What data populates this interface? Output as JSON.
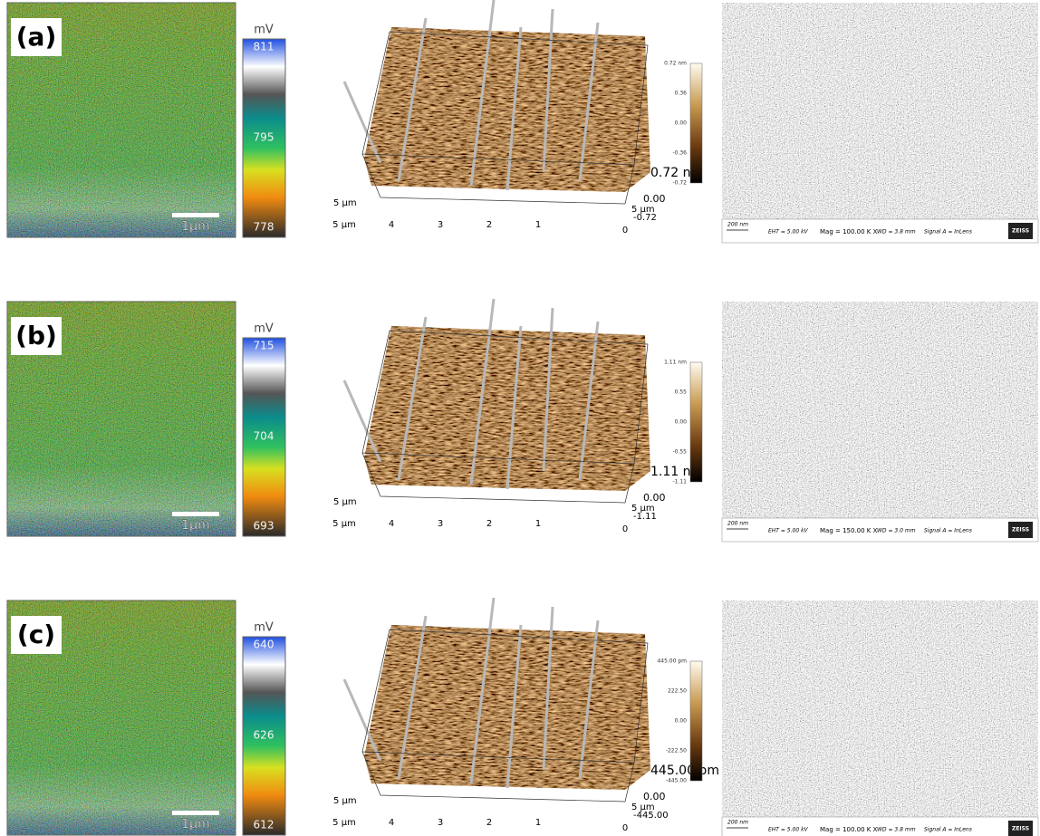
{
  "panels": [
    {
      "label": "(a)",
      "kpfm": {
        "unit": "mV",
        "ticks": [
          "811",
          "795",
          "778"
        ],
        "scale_bar": "1µm"
      },
      "afm": {
        "axis_left": "5 µm",
        "x_axis": [
          "5 µm",
          "4",
          "3",
          "2",
          "1",
          "0"
        ],
        "depth_axis": "5 µm",
        "z_labels": [
          "0.72 nm",
          "0.00",
          "-0.72"
        ],
        "colorbar": [
          "0.72 nm",
          "0.36",
          "0.00",
          "-0.36",
          "-0.72"
        ]
      },
      "sem": {
        "scale": "200 nm",
        "eht": "EHT = 5.00 kV",
        "mag": "Mag = 100.00 K X",
        "wd": "WD = 3.8 mm",
        "signal": "Signal A = InLens",
        "brand": "ZEISS"
      }
    },
    {
      "label": "(b)",
      "kpfm": {
        "unit": "mV",
        "ticks": [
          "715",
          "704",
          "693"
        ],
        "scale_bar": "1µm"
      },
      "afm": {
        "axis_left": "5 µm",
        "x_axis": [
          "5 µm",
          "4",
          "3",
          "2",
          "1",
          "0"
        ],
        "depth_axis": "5 µm",
        "z_labels": [
          "1.11 nm",
          "0.00",
          "-1.11"
        ],
        "colorbar": [
          "1.11 nm",
          "0.55",
          "0.00",
          "-0.55",
          "-1.11"
        ]
      },
      "sem": {
        "scale": "200 nm",
        "eht": "EHT = 5.00 kV",
        "mag": "Mag = 150.00 K X",
        "wd": "WD = 3.0 mm",
        "signal": "Signal A = InLens",
        "brand": "ZEISS"
      }
    },
    {
      "label": "(c)",
      "kpfm": {
        "unit": "mV",
        "ticks": [
          "640",
          "626",
          "612"
        ],
        "scale_bar": "1µm"
      },
      "afm": {
        "axis_left": "5 µm",
        "x_axis": [
          "5 µm",
          "4",
          "3",
          "2",
          "1",
          "0"
        ],
        "depth_axis": "5 µm",
        "z_labels": [
          "445.00 pm",
          "0.00",
          "-445.00"
        ],
        "colorbar": [
          "445.00 pm",
          "222.50",
          "0.00",
          "-222.50",
          "-445.00"
        ]
      },
      "sem": {
        "scale": "200 nm",
        "eht": "EHT = 5.00 kV",
        "mag": "Mag = 100.00 K X",
        "wd": "WD = 3.8 mm",
        "signal": "Signal A = InLens",
        "brand": "ZEISS"
      }
    }
  ]
}
